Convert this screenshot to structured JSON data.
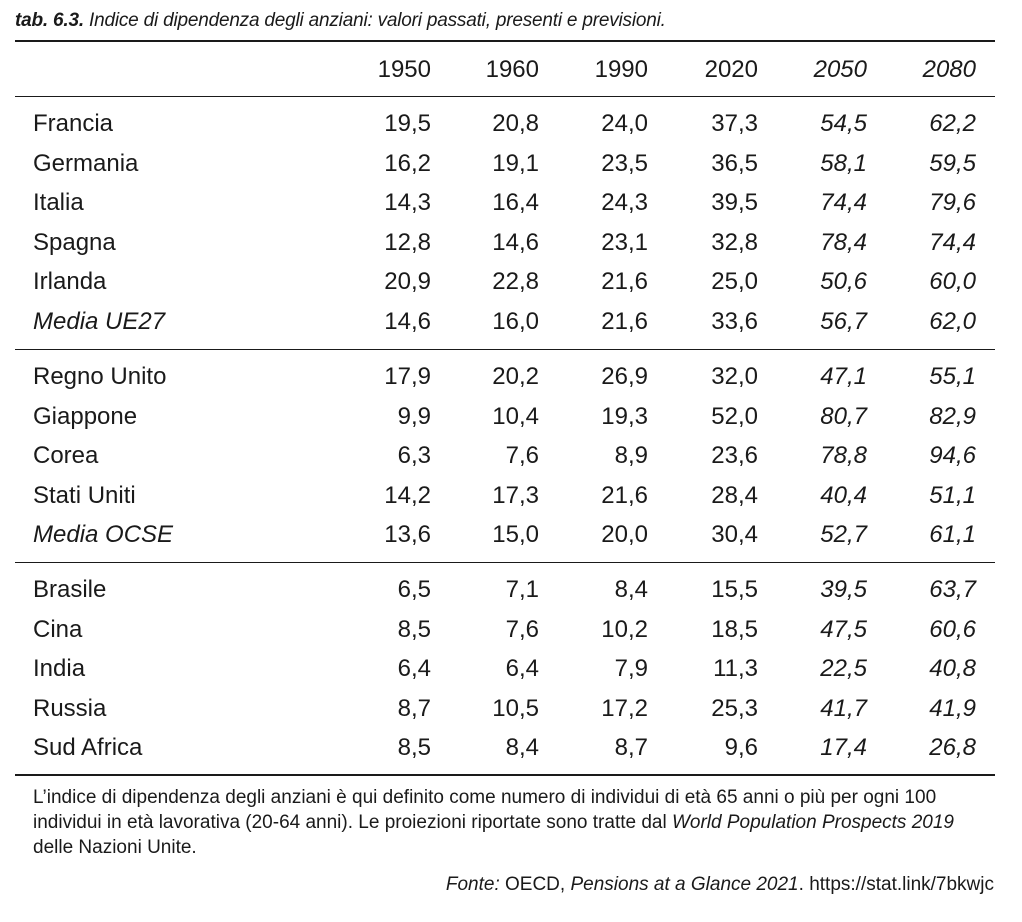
{
  "caption": {
    "number": "tab. 6.3.",
    "title": "Indice di dipendenza degli anziani: valori passati, presenti e previsioni."
  },
  "columns": [
    "1950",
    "1960",
    "1990",
    "2020",
    "2050",
    "2080"
  ],
  "groups": [
    {
      "rows": [
        {
          "label": "Francia",
          "values": [
            "19,5",
            "20,8",
            "24,0",
            "37,3",
            "54,5",
            "62,2"
          ]
        },
        {
          "label": "Germania",
          "values": [
            "16,2",
            "19,1",
            "23,5",
            "36,5",
            "58,1",
            "59,5"
          ]
        },
        {
          "label": "Italia",
          "values": [
            "14,3",
            "16,4",
            "24,3",
            "39,5",
            "74,4",
            "79,6"
          ]
        },
        {
          "label": "Spagna",
          "values": [
            "12,8",
            "14,6",
            "23,1",
            "32,8",
            "78,4",
            "74,4"
          ]
        },
        {
          "label": "Irlanda",
          "values": [
            "20,9",
            "22,8",
            "21,6",
            "25,0",
            "50,6",
            "60,0"
          ]
        },
        {
          "label": "Media UE27",
          "values": [
            "14,6",
            "16,0",
            "21,6",
            "33,6",
            "56,7",
            "62,0"
          ]
        }
      ]
    },
    {
      "rows": [
        {
          "label": "Regno Unito",
          "values": [
            "17,9",
            "20,2",
            "26,9",
            "32,0",
            "47,1",
            "55,1"
          ]
        },
        {
          "label": "Giappone",
          "values": [
            "9,9",
            "10,4",
            "19,3",
            "52,0",
            "80,7",
            "82,9"
          ]
        },
        {
          "label": "Corea",
          "values": [
            "6,3",
            "7,6",
            "8,9",
            "23,6",
            "78,8",
            "94,6"
          ]
        },
        {
          "label": "Stati Uniti",
          "values": [
            "14,2",
            "17,3",
            "21,6",
            "28,4",
            "40,4",
            "51,1"
          ]
        },
        {
          "label": "Media OCSE",
          "values": [
            "13,6",
            "15,0",
            "20,0",
            "30,4",
            "52,7",
            "61,1"
          ]
        }
      ]
    },
    {
      "rows": [
        {
          "label": "Brasile",
          "values": [
            "6,5",
            "7,1",
            "8,4",
            "15,5",
            "39,5",
            "63,7"
          ]
        },
        {
          "label": "Cina",
          "values": [
            "8,5",
            "7,6",
            "10,2",
            "18,5",
            "47,5",
            "60,6"
          ]
        },
        {
          "label": "India",
          "values": [
            "6,4",
            "6,4",
            "7,9",
            "11,3",
            "22,5",
            "40,8"
          ]
        },
        {
          "label": "Russia",
          "values": [
            "8,7",
            "10,5",
            "17,2",
            "25,3",
            "41,7",
            "41,9"
          ]
        },
        {
          "label": "Sud Africa",
          "values": [
            "8,5",
            "8,4",
            "8,7",
            "9,6",
            "17,4",
            "26,8"
          ]
        }
      ]
    }
  ],
  "note": {
    "text": "L’indice di dipendenza degli anziani è qui definito come numero di individui di età 65 anni o più per ogni 100 individui in età lavorativa (20-64 anni). Le proiezioni riportate sono tratte dal ",
    "source_title": "World Population Prospects 2019",
    "text_end": " delle Nazioni Unite."
  },
  "source": {
    "label": "Fonte:",
    "org": " OECD, ",
    "publication": "Pensions at a Glance 2021",
    "link": ". https://stat.link/7bkwjc"
  }
}
